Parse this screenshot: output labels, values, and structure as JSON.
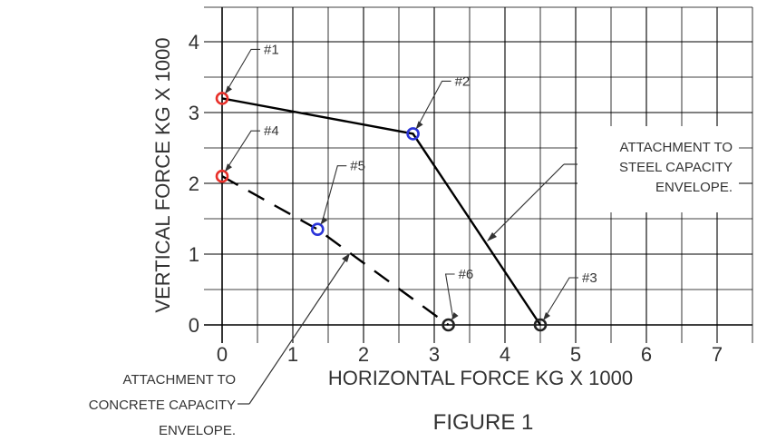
{
  "chart_data": {
    "type": "line",
    "title": "",
    "figure_caption": "FIGURE 1",
    "xlabel": "HORIZONTAL FORCE KG X 1000",
    "ylabel": "VERTICAL FORCE KG X 1000",
    "xlim": [
      0,
      7.5
    ],
    "ylim": [
      0,
      4.5
    ],
    "x_ticks": [
      "0",
      "1",
      "2",
      "3",
      "4",
      "5",
      "6",
      "7"
    ],
    "y_ticks": [
      "0",
      "1",
      "2",
      "3",
      "4"
    ],
    "grid": true,
    "series": [
      {
        "style": "solid",
        "points": [
          {
            "label": "#1",
            "x": 0,
            "y": 3.2,
            "color": "#e8302a"
          },
          {
            "label": "#2",
            "x": 2.7,
            "y": 2.7,
            "color": "#2a34d8"
          },
          {
            "label": "#3",
            "x": 4.5,
            "y": 0,
            "color": "#222222"
          }
        ]
      },
      {
        "style": "dashed",
        "points": [
          {
            "label": "#4",
            "x": 0,
            "y": 2.1,
            "color": "#e8302a"
          },
          {
            "label": "#5",
            "x": 1.35,
            "y": 1.35,
            "color": "#2a34d8"
          },
          {
            "label": "#6",
            "x": 3.2,
            "y": 0,
            "color": "#222222"
          }
        ]
      }
    ],
    "annotations": [
      {
        "name": "steel",
        "lines": [
          "ATTACHMENT TO",
          "STEEL CAPACITY",
          "ENVELOPE."
        ]
      },
      {
        "name": "concrete",
        "lines": [
          "ATTACHMENT TO",
          "CONCRETE CAPACITY",
          "ENVELOPE."
        ]
      }
    ]
  }
}
